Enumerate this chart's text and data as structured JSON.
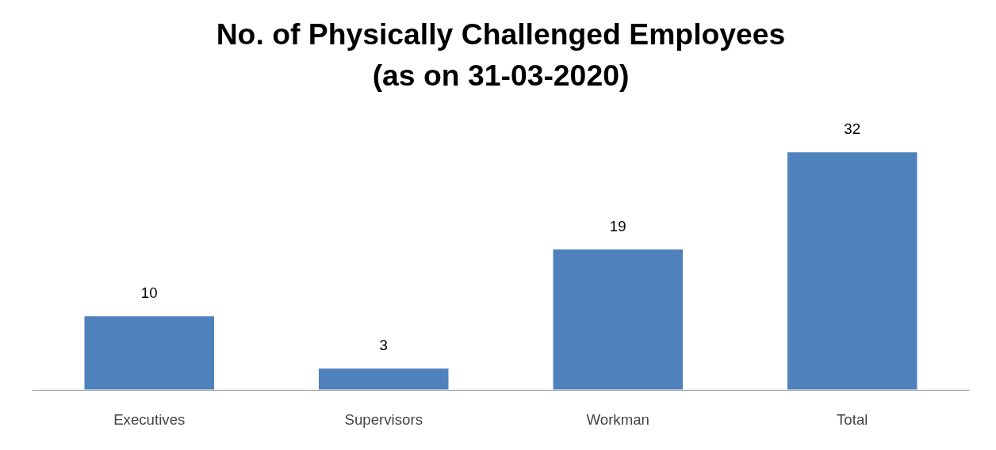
{
  "chart_data": {
    "type": "bar",
    "title": "No. of Physically Challenged Employees\n(as on 31-03-2020)",
    "categories": [
      "Executives",
      "Supervisors",
      "Workman",
      "Total"
    ],
    "values": [
      10,
      3,
      19,
      32
    ],
    "color": "#4f81bd",
    "data_labels": true,
    "grid": false
  }
}
